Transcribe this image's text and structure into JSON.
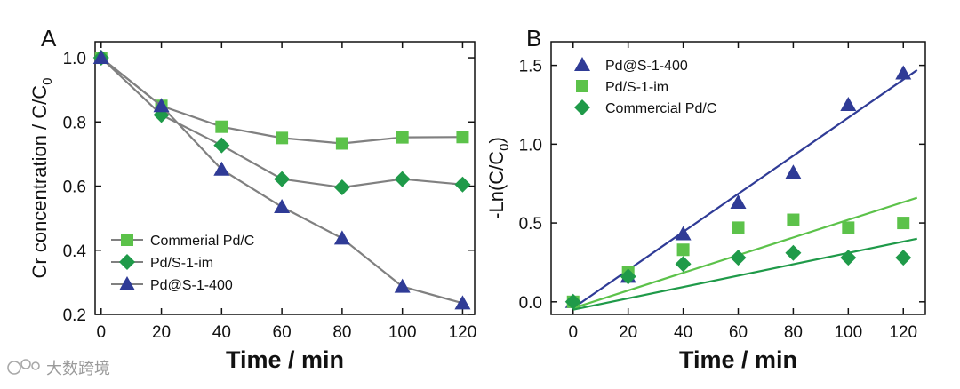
{
  "watermark": "大数跨境",
  "chart_data": [
    {
      "panel": "A",
      "type": "line",
      "xlabel": "Time / min",
      "ylabel": "Cr concentration / C/C",
      "ylabel_sub": "0",
      "xlim": [
        -2,
        124
      ],
      "ylim": [
        0.2,
        1.05
      ],
      "xticks": [
        0,
        20,
        40,
        60,
        80,
        100,
        120
      ],
      "yticks": [
        0.2,
        0.4,
        0.6,
        0.8,
        1.0
      ],
      "ytick_labels": [
        "0.2",
        "0.4",
        "0.6",
        "0.8",
        "1.0"
      ],
      "x": [
        0,
        20,
        40,
        60,
        80,
        100,
        120
      ],
      "series": [
        {
          "name": "Commerial Pd/C",
          "marker": "square",
          "color": "#5cc24a",
          "values": [
            1.0,
            0.85,
            0.785,
            0.75,
            0.733,
            0.752,
            0.753
          ]
        },
        {
          "name": "Pd/S-1-im",
          "marker": "diamond",
          "color": "#1f9a49",
          "values": [
            1.0,
            0.822,
            0.727,
            0.622,
            0.596,
            0.622,
            0.605
          ]
        },
        {
          "name": "Pd@S-1-400",
          "marker": "triangle",
          "color": "#2f3b96",
          "values": [
            1.0,
            0.85,
            0.652,
            0.535,
            0.437,
            0.287,
            0.235
          ]
        }
      ],
      "legend_position": "lower-left",
      "line_color": "#808080"
    },
    {
      "panel": "B",
      "type": "scatter",
      "xlabel": "Time / min",
      "ylabel": "-Ln(C/C",
      "ylabel_sub": "0",
      "ylabel_end": ")",
      "xlim": [
        -8,
        128
      ],
      "ylim": [
        -0.08,
        1.65
      ],
      "xticks": [
        0,
        20,
        40,
        60,
        80,
        100,
        120
      ],
      "yticks": [
        0.0,
        0.5,
        1.0,
        1.5
      ],
      "ytick_labels": [
        "0.0",
        "0.5",
        "1.0",
        "1.5"
      ],
      "x": [
        0,
        20,
        40,
        60,
        80,
        100,
        120
      ],
      "series": [
        {
          "name": "Pd@S-1-400",
          "marker": "triangle",
          "color": "#2f3b96",
          "values": [
            0.0,
            0.16,
            0.43,
            0.63,
            0.82,
            1.25,
            1.45
          ],
          "fit": {
            "x": [
              0,
              125
            ],
            "y": [
              -0.04,
              1.47
            ]
          }
        },
        {
          "name": "Pd/S-1-im",
          "marker": "square",
          "color": "#5cc24a",
          "values": [
            0.0,
            0.19,
            0.33,
            0.47,
            0.52,
            0.47,
            0.5
          ],
          "fit": {
            "x": [
              0,
              125
            ],
            "y": [
              -0.04,
              0.66
            ]
          }
        },
        {
          "name": "Commercial Pd/C",
          "marker": "diamond",
          "color": "#1f9a49",
          "values": [
            0.0,
            0.16,
            0.24,
            0.28,
            0.31,
            0.28,
            0.28
          ],
          "fit": {
            "x": [
              0,
              125
            ],
            "y": [
              -0.05,
              0.4
            ]
          }
        }
      ],
      "legend_position": "top-left"
    }
  ]
}
